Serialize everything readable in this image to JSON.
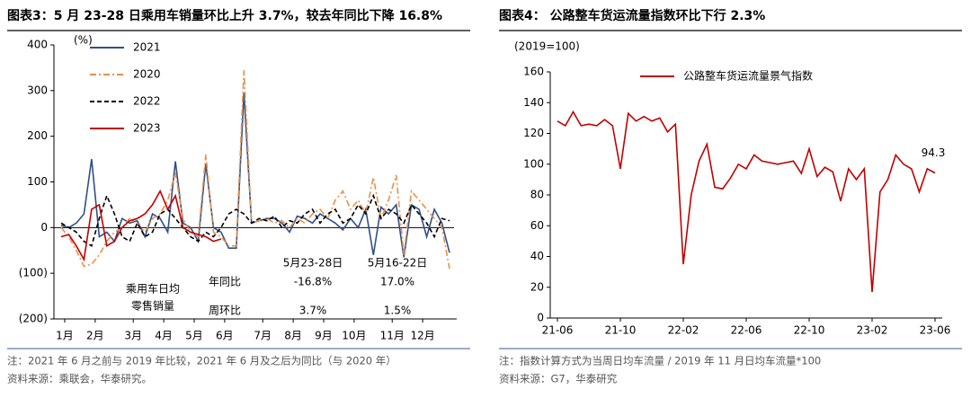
{
  "chart_data": [
    {
      "type": "line",
      "title": "图表3：5 月 23-28 日乘用车销量环比上升 3.7%，较去年同比下降 16.8%",
      "y_unit": "(%)",
      "categories": [
        "1月",
        null,
        null,
        null,
        "2月",
        null,
        null,
        null,
        null,
        "3月",
        null,
        null,
        null,
        "4月",
        null,
        null,
        null,
        "5月",
        null,
        null,
        null,
        "6月",
        null,
        null,
        null,
        null,
        "7月",
        null,
        null,
        null,
        "8月",
        null,
        null,
        null,
        "9月",
        null,
        null,
        null,
        "10月",
        null,
        null,
        null,
        null,
        "11月",
        null,
        null,
        null,
        "12月",
        null,
        null,
        null,
        null
      ],
      "ylim": [
        -200,
        400
      ],
      "yticks": [
        {
          "value": -200,
          "label": "(200)"
        },
        {
          "value": -100,
          "label": "(100)"
        },
        0,
        100,
        200,
        300,
        400
      ],
      "series": [
        {
          "name": "2021",
          "color": "#2f4f8a",
          "style": "solid",
          "values": [
            5,
            0,
            10,
            30,
            150,
            -20,
            -10,
            -30,
            20,
            10,
            15,
            -20,
            30,
            20,
            -10,
            145,
            10,
            0,
            -30,
            140,
            0,
            -10,
            -45,
            -45,
            295,
            10,
            15,
            20,
            20,
            10,
            -10,
            25,
            20,
            10,
            30,
            20,
            10,
            -5,
            20,
            0,
            40,
            -60,
            45,
            30,
            50,
            -65,
            50,
            40,
            -20,
            40,
            10,
            -55
          ]
        },
        {
          "name": "2020",
          "color": "#e8914a",
          "style": "dashdot",
          "values": [
            0,
            -20,
            -50,
            -85,
            -80,
            -60,
            -30,
            -10,
            0,
            20,
            10,
            -10,
            20,
            30,
            60,
            120,
            20,
            -10,
            -20,
            160,
            -10,
            -20,
            -40,
            -40,
            345,
            10,
            15,
            20,
            10,
            15,
            0,
            20,
            10,
            30,
            40,
            20,
            60,
            80,
            40,
            60,
            30,
            110,
            20,
            60,
            115,
            -60,
            80,
            60,
            40,
            20,
            0,
            -90
          ]
        },
        {
          "name": "2022",
          "color": "#000000",
          "style": "dashed",
          "values": [
            10,
            0,
            -10,
            -30,
            -40,
            20,
            70,
            30,
            -20,
            -30,
            10,
            -20,
            -10,
            30,
            40,
            20,
            0,
            -20,
            -30,
            -10,
            -20,
            0,
            30,
            40,
            30,
            10,
            20,
            15,
            25,
            0,
            15,
            10,
            30,
            40,
            10,
            30,
            40,
            10,
            20,
            50,
            30,
            70,
            20,
            40,
            30,
            10,
            50,
            30,
            10,
            -20,
            20,
            15
          ]
        },
        {
          "name": "2023",
          "color": "#c00000",
          "style": "solid",
          "values": [
            -20,
            -15,
            -40,
            -70,
            40,
            50,
            -40,
            -30,
            0,
            15,
            20,
            30,
            50,
            80,
            40,
            70,
            0,
            -10,
            -15,
            -20,
            -30,
            -25,
            null,
            null,
            null,
            null,
            null,
            null,
            null,
            null,
            null,
            null,
            null,
            null,
            null,
            null,
            null,
            null,
            null,
            null,
            null,
            null,
            null,
            null,
            null,
            null,
            null,
            null,
            null,
            null,
            null,
            null
          ]
        }
      ],
      "table": {
        "row_header": [
          "乘用车日均",
          "零售销量"
        ],
        "columns": [
          "5月23-28日",
          "5月16-22日"
        ],
        "rows": [
          {
            "name": "年同比",
            "cells": [
              "-16.8%",
              "17.0%"
            ]
          },
          {
            "name": "周环比",
            "cells": [
              "3.7%",
              "1.5%"
            ]
          }
        ]
      },
      "notes": [
        "注：2021 年 6 月之前与 2019 年比较，2021 年 6 月及之后为同比（与 2020 年）",
        "资料来源：乘联会，华泰研究。"
      ]
    },
    {
      "type": "line",
      "title": "图表4：  公路整车货运流量指数环比下行 2.3%",
      "y_unit": "(2019=100)",
      "categories": [
        "21-06",
        null,
        null,
        null,
        null,
        null,
        null,
        null,
        "21-10",
        null,
        null,
        null,
        null,
        null,
        null,
        null,
        "22-02",
        null,
        null,
        null,
        null,
        null,
        null,
        null,
        "22-06",
        null,
        null,
        null,
        null,
        null,
        null,
        null,
        "22-10",
        null,
        null,
        null,
        null,
        null,
        null,
        null,
        "23-02",
        null,
        null,
        null,
        null,
        null,
        null,
        null,
        "23-06"
      ],
      "ylim": [
        0,
        160
      ],
      "yticks": [
        0,
        20,
        40,
        60,
        80,
        100,
        120,
        140,
        160
      ],
      "series": [
        {
          "name": "公路整车货运流量景气指数",
          "color": "#c00000",
          "style": "solid",
          "values": [
            128,
            125,
            134,
            125,
            126,
            125,
            129,
            125,
            97,
            133,
            128,
            131,
            128,
            130,
            121,
            126,
            35,
            80,
            102,
            113,
            85,
            84,
            91,
            100,
            97,
            106,
            102,
            101,
            100,
            101,
            102,
            94,
            110,
            92,
            98,
            95,
            76,
            97,
            90,
            97,
            17,
            82,
            90,
            106,
            100,
            97,
            82,
            97,
            94.3
          ],
          "value_labels": [
            null,
            null,
            null,
            null,
            null,
            null,
            null,
            null,
            null,
            null,
            null,
            null,
            null,
            null,
            null,
            null,
            null,
            null,
            null,
            null,
            null,
            null,
            null,
            null,
            null,
            null,
            null,
            null,
            null,
            null,
            null,
            null,
            null,
            null,
            null,
            null,
            null,
            null,
            null,
            null,
            null,
            null,
            null,
            null,
            null,
            null,
            null,
            null,
            "94.3"
          ]
        }
      ],
      "notes": [
        "注：指数计算方式为当周日均车流量 / 2019 年 11 月日均车流量*100",
        "资料来源：G7，华泰研究"
      ]
    }
  ]
}
